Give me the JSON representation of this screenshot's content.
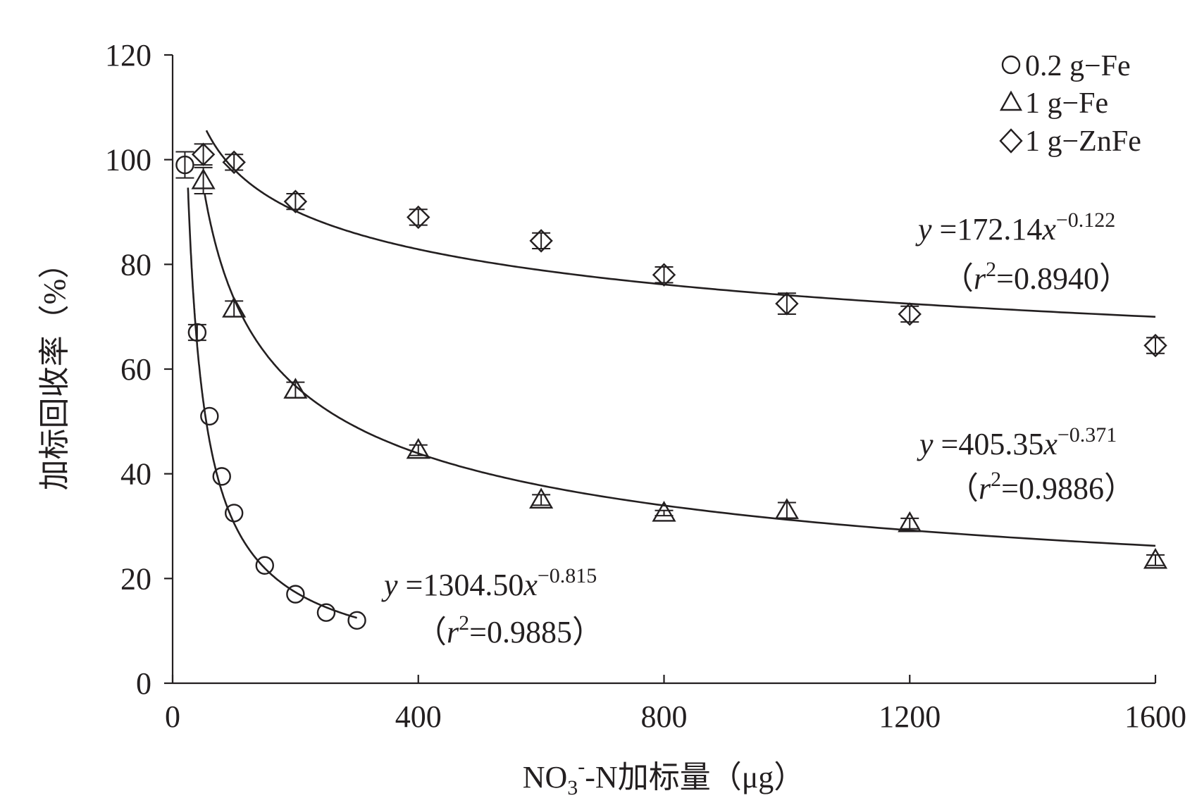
{
  "chart_data": {
    "type": "scatter",
    "xlabel_main": "NO",
    "xlabel_sub": "3",
    "xlabel_sup": "-",
    "xlabel_rest": "-N加标量（μg）",
    "ylabel": "加标回收率（%）",
    "xlim": [
      0,
      1600
    ],
    "ylim": [
      0,
      120
    ],
    "xticks": [
      0,
      400,
      800,
      1200,
      1600
    ],
    "yticks": [
      0,
      20,
      40,
      60,
      80,
      100,
      120
    ],
    "legend_position": "top-right",
    "series": [
      {
        "name": "0.2 g−Fe",
        "marker": "circle",
        "x": [
          20,
          40,
          60,
          80,
          100,
          150,
          200,
          250,
          300
        ],
        "y": [
          99,
          67,
          51,
          39.5,
          32.5,
          22.5,
          17,
          13.5,
          12
        ],
        "err": [
          2.5,
          1.5,
          0,
          0,
          0,
          0,
          0,
          0,
          0
        ],
        "fit": {
          "a": 1304.5,
          "b": -0.815,
          "x_range": [
            25,
            300
          ],
          "eq_coef": "1304.50",
          "eq_exp": "−0.815",
          "r2": "0.9885"
        }
      },
      {
        "name": "1 g−Fe",
        "marker": "triangle",
        "x": [
          50,
          100,
          200,
          400,
          600,
          800,
          1000,
          1200,
          1600
        ],
        "y": [
          96,
          71.5,
          56,
          44.5,
          35,
          32.5,
          33,
          30.5,
          23.5
        ],
        "err": [
          2.5,
          1.5,
          1.5,
          1,
          1,
          0.5,
          1.5,
          1,
          1
        ],
        "fit": {
          "a": 405.35,
          "b": -0.371,
          "x_range": [
            52,
            1600
          ],
          "eq_coef": "405.35",
          "eq_exp": "−0.371",
          "r2": "0.9886"
        }
      },
      {
        "name": "1 g−ZnFe",
        "marker": "diamond",
        "x": [
          50,
          100,
          200,
          400,
          600,
          800,
          1000,
          1200,
          1600
        ],
        "y": [
          101,
          99.5,
          92,
          89,
          84.5,
          78,
          72.5,
          70.5,
          64.5
        ],
        "err": [
          2,
          1.5,
          1.5,
          1.5,
          1.5,
          1.5,
          2,
          1.5,
          1.5
        ],
        "fit": {
          "a": 172.14,
          "b": -0.122,
          "x_range": [
            55,
            1600
          ],
          "eq_coef": "172.14",
          "eq_exp": "−0.122",
          "r2": "0.8940"
        }
      }
    ]
  }
}
